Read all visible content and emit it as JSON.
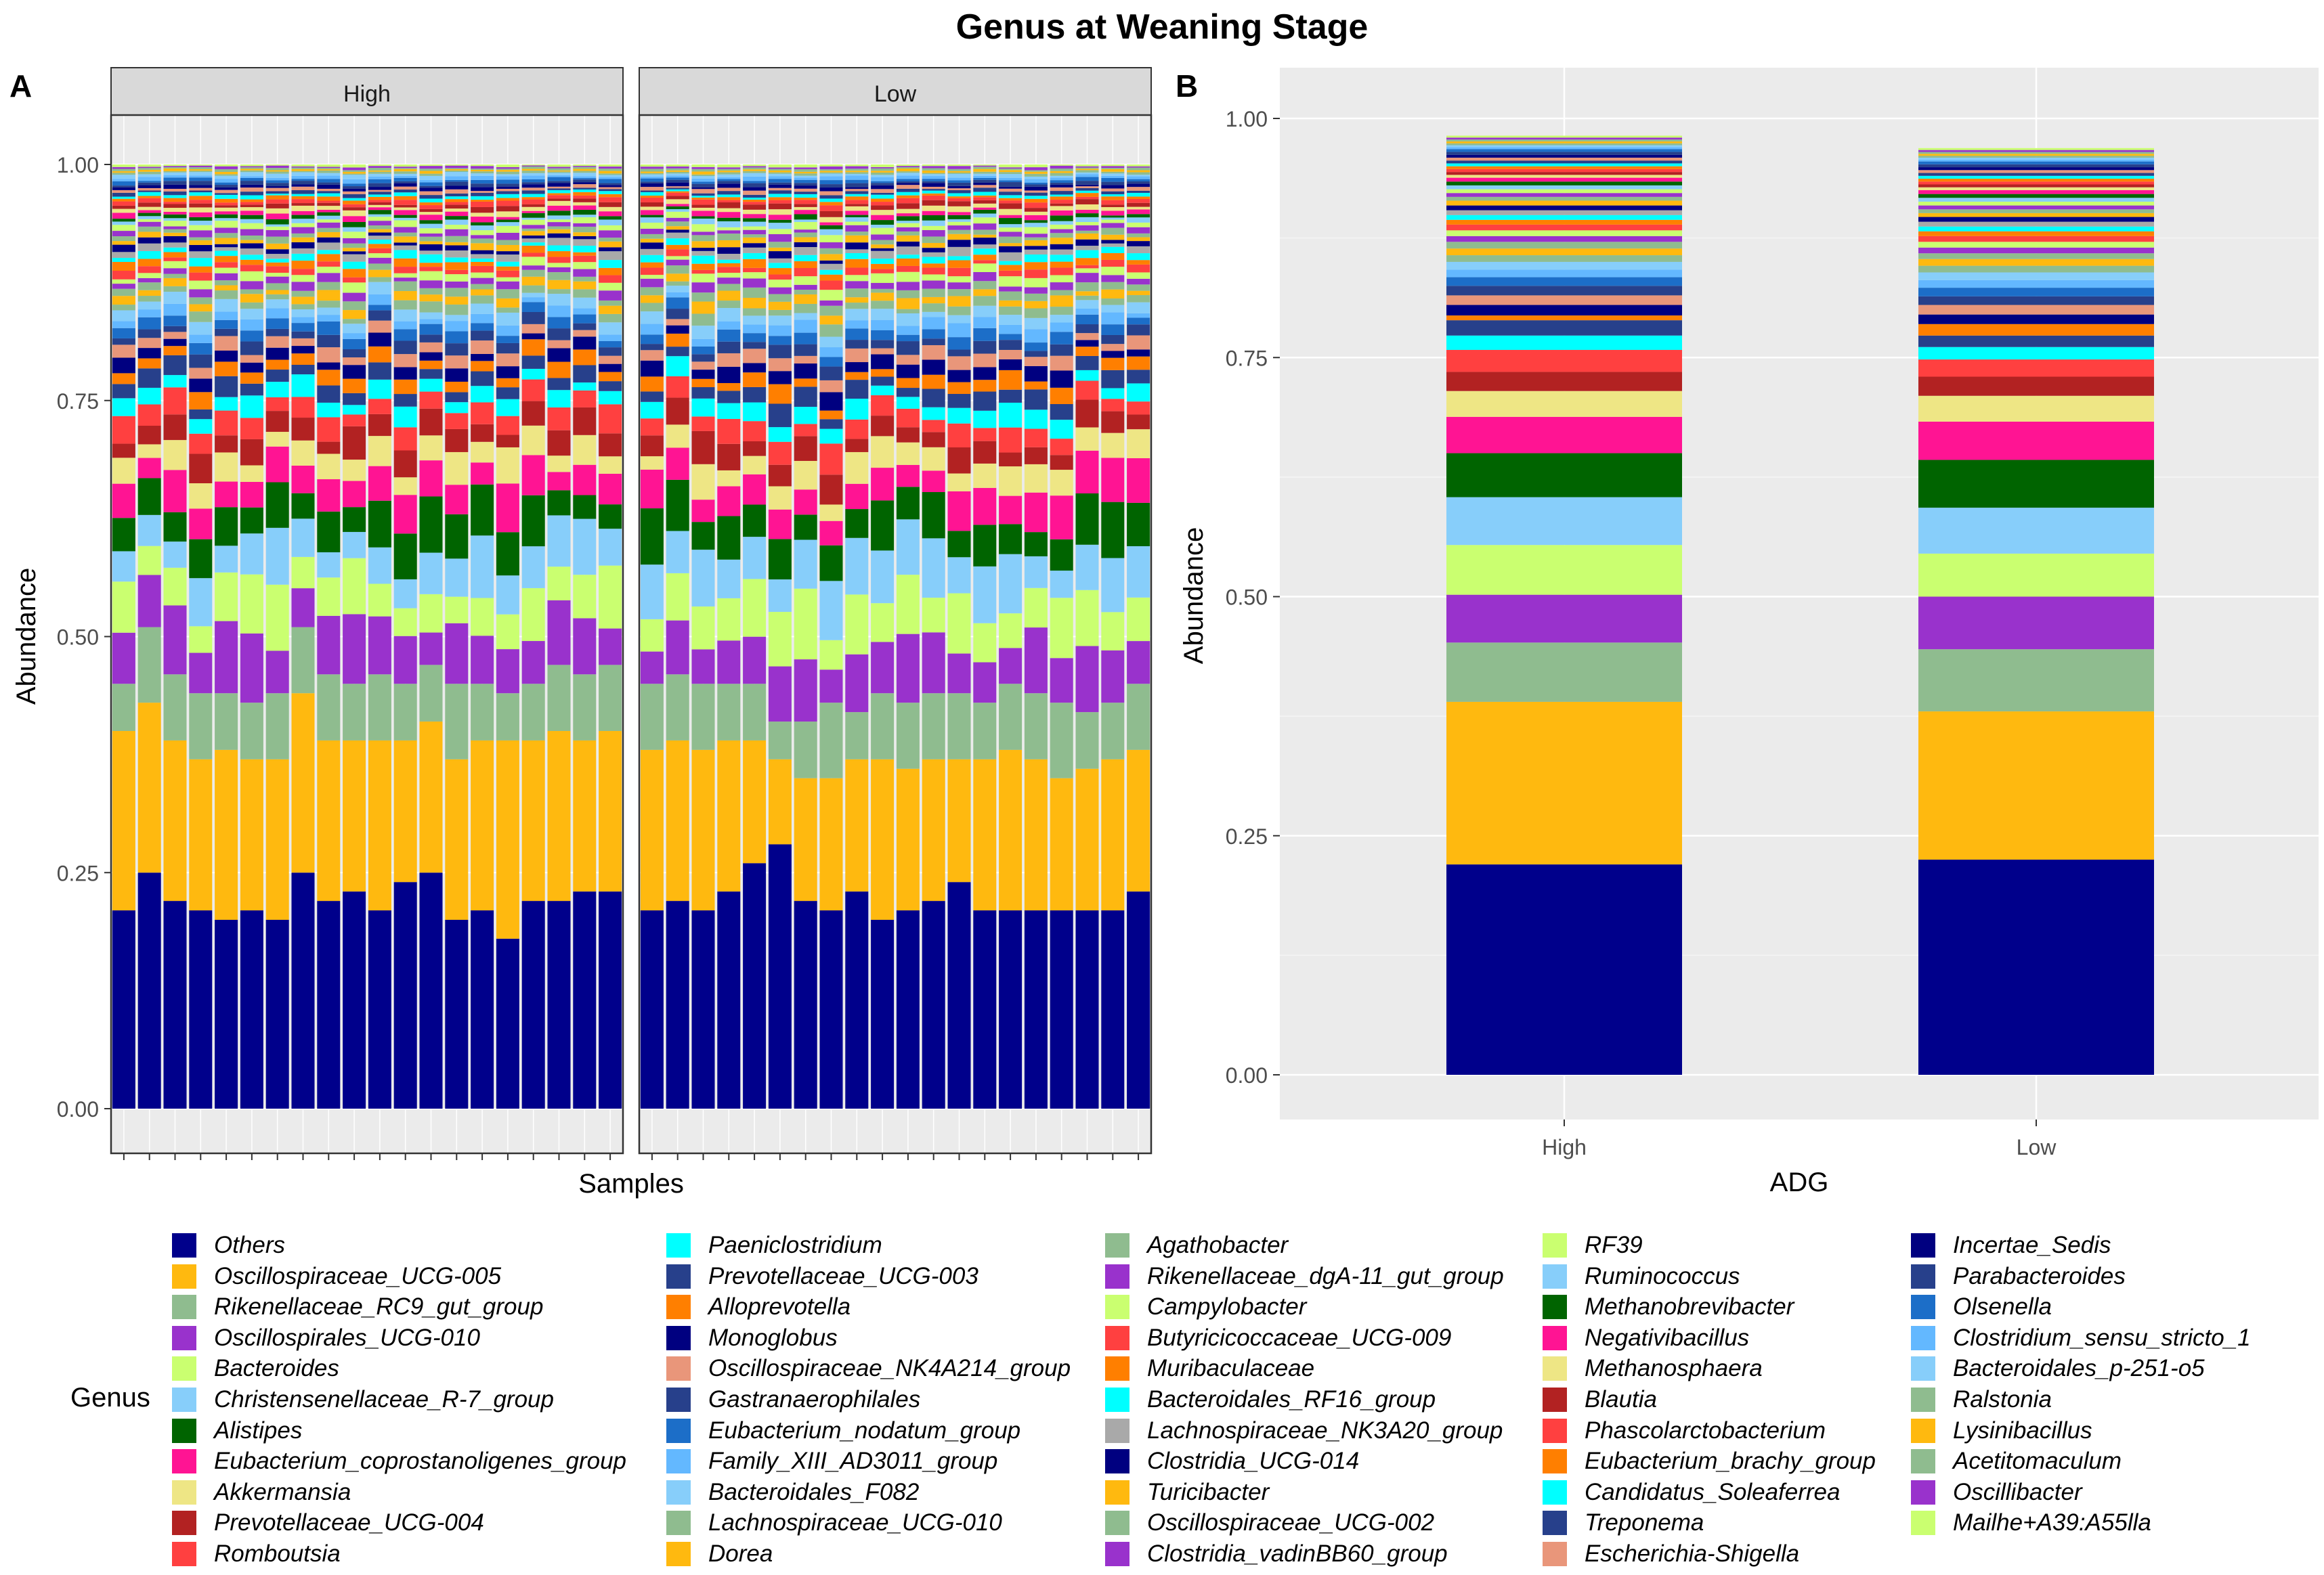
{
  "figure_title": "Genus at Weaning Stage",
  "panel_labels": [
    "A",
    "B"
  ],
  "legend_title": "Genus",
  "colors": {
    "panel_bg": "#ebebeb",
    "strip_bg": "#d9d9d9",
    "grid": "#ffffff"
  },
  "chart_data": [
    {
      "type": "bar",
      "stacked": true,
      "facets": [
        "High",
        "Low"
      ],
      "samples_per_facet": 20,
      "xlabel": "Samples",
      "ylabel": "Abundance",
      "ylim": [
        0,
        1
      ],
      "yticks": [
        "0.00",
        "0.25",
        "0.50",
        "0.75",
        "1.00"
      ],
      "first_layers_note_free": true,
      "layers": [
        {
          "name": "Others",
          "High": [
            0.21,
            0.25,
            0.22,
            0.21,
            0.2,
            0.21,
            0.2,
            0.25,
            0.22,
            0.23,
            0.21,
            0.24,
            0.25,
            0.2,
            0.21,
            0.18,
            0.22,
            0.22,
            0.23,
            0.23
          ],
          "Low": [
            0.21,
            0.22,
            0.21,
            0.23,
            0.26,
            0.28,
            0.22,
            0.21,
            0.23,
            0.2,
            0.21,
            0.22,
            0.24,
            0.21,
            0.21,
            0.21,
            0.21,
            0.21,
            0.21,
            0.23
          ]
        },
        {
          "name": "Oscillospiraceae_UCG-005",
          "High": [
            0.19,
            0.18,
            0.17,
            0.16,
            0.18,
            0.16,
            0.17,
            0.19,
            0.17,
            0.16,
            0.18,
            0.15,
            0.16,
            0.17,
            0.18,
            0.21,
            0.17,
            0.18,
            0.16,
            0.17
          ],
          "Low": [
            0.17,
            0.17,
            0.17,
            0.16,
            0.13,
            0.09,
            0.13,
            0.14,
            0.14,
            0.17,
            0.15,
            0.15,
            0.13,
            0.16,
            0.17,
            0.16,
            0.14,
            0.15,
            0.16,
            0.15
          ]
        },
        {
          "name": "Rikenellaceae_RC9_gut_group",
          "High": [
            0.05,
            0.08,
            0.07,
            0.07,
            0.06,
            0.06,
            0.07,
            0.07,
            0.07,
            0.06,
            0.07,
            0.06,
            0.06,
            0.08,
            0.06,
            0.05,
            0.06,
            0.07,
            0.07,
            0.07
          ],
          "Low": [
            0.07,
            0.07,
            0.07,
            0.06,
            0.06,
            0.04,
            0.06,
            0.08,
            0.05,
            0.07,
            0.07,
            0.07,
            0.07,
            0.06,
            0.07,
            0.07,
            0.08,
            0.06,
            0.06,
            0.07
          ]
        }
      ],
      "genera_order": [
        "Others",
        "Oscillospiraceae_UCG-005",
        "Rikenellaceae_RC9_gut_group",
        "Oscillospirales_UCG-010",
        "Bacteroides",
        "Christensenellaceae_R-7_group",
        "Alistipes",
        "Eubacterium_coprostanoligenes_group",
        "Akkermansia",
        "Prevotellaceae_UCG-004",
        "Romboutsia",
        "Paeniclostridium",
        "Prevotellaceae_UCG-003",
        "Alloprevotella",
        "Monoglobus",
        "Oscillospiraceae_NK4A214_group",
        "Gastranaerophilales",
        "Eubacterium_nodatum_group",
        "Family_XIII_AD3011_group",
        "Bacteroidales_F082",
        "Lachnospiraceae_UCG-010",
        "Dorea",
        "Agathobacter",
        "Rikenellaceae_dgA-11_gut_group",
        "Campylobacter",
        "Butyricicoccaceae_UCG-009",
        "Muribaculaceae",
        "Bacteroidales_RF16_group",
        "Lachnospiraceae_NK3A20_group",
        "Clostridia_UCG-014",
        "Turicibacter",
        "Oscillospiraceae_UCG-002",
        "Clostridia_vadinBB60_group",
        "RF39",
        "Ruminococcus",
        "Methanobrevibacter",
        "Negativibacillus",
        "Methanosphaera",
        "Blautia",
        "Phascolarctobacterium",
        "Eubacterium_brachy_group",
        "Candidatus_Soleaferrea",
        "Treponema",
        "Escherichia-Shigella",
        "Incertae_Sedis",
        "Parabacteroides",
        "Olsenella",
        "Clostridium_sensu_stricto_1",
        "Bacteroidales_p-251-o5",
        "Ralstonia",
        "Lysinibacillus",
        "Acetitomaculum",
        "Oscillibacter",
        "Mailhe+A39:A55lla"
      ]
    },
    {
      "type": "bar",
      "stacked": true,
      "categories": [
        "High",
        "Low"
      ],
      "xlabel": "ADG",
      "ylabel": "Abundance",
      "ylim": [
        0,
        1
      ],
      "yticks": [
        "0.00",
        "0.25",
        "0.50",
        "0.75",
        "1.00"
      ],
      "series": [
        {
          "name": "Others",
          "values": [
            0.22,
            0.225
          ]
        },
        {
          "name": "Oscillospiraceae_UCG-005",
          "values": [
            0.17,
            0.155
          ]
        },
        {
          "name": "Rikenellaceae_RC9_gut_group",
          "values": [
            0.062,
            0.065
          ]
        },
        {
          "name": "Oscillospirales_UCG-010",
          "values": [
            0.05,
            0.055
          ]
        },
        {
          "name": "Bacteroides",
          "values": [
            0.052,
            0.045
          ]
        },
        {
          "name": "Christensenellaceae_R-7_group",
          "values": [
            0.05,
            0.048
          ]
        },
        {
          "name": "Alistipes",
          "values": [
            0.046,
            0.05
          ]
        },
        {
          "name": "Eubacterium_coprostanoligenes_group",
          "values": [
            0.038,
            0.04
          ]
        },
        {
          "name": "Akkermansia",
          "values": [
            0.027,
            0.027
          ]
        },
        {
          "name": "Prevotellaceae_UCG-004",
          "values": [
            0.02,
            0.02
          ]
        },
        {
          "name": "Romboutsia",
          "values": [
            0.023,
            0.018
          ]
        },
        {
          "name": "Paeniclostridium",
          "values": [
            0.015,
            0.013
          ]
        },
        {
          "name": "Prevotellaceae_UCG-003",
          "values": [
            0.016,
            0.012
          ]
        },
        {
          "name": "Alloprevotella",
          "values": [
            0.005,
            0.012
          ]
        },
        {
          "name": "Monoglobus",
          "values": [
            0.011,
            0.01
          ]
        },
        {
          "name": "Oscillospiraceae_NK4A214_group",
          "values": [
            0.01,
            0.01
          ]
        },
        {
          "name": "Gastranaerophilales",
          "values": [
            0.01,
            0.009
          ]
        },
        {
          "name": "Eubacterium_nodatum_group",
          "values": [
            0.009,
            0.009
          ]
        },
        {
          "name": "Family_XIII_AD3011_group",
          "values": [
            0.008,
            0.008
          ]
        },
        {
          "name": "Bacteroidales_F082",
          "values": [
            0.008,
            0.008
          ]
        },
        {
          "name": "Lachnospiraceae_UCG-010",
          "values": [
            0.007,
            0.007
          ]
        },
        {
          "name": "Dorea",
          "values": [
            0.007,
            0.007
          ]
        },
        {
          "name": "Agathobacter",
          "values": [
            0.007,
            0.006
          ]
        },
        {
          "name": "Rikenellaceae_dgA-11_gut_group",
          "values": [
            0.006,
            0.006
          ]
        },
        {
          "name": "Campylobacter",
          "values": [
            0.006,
            0.006
          ]
        },
        {
          "name": "Butyricicoccaceae_UCG-009",
          "values": [
            0.006,
            0.006
          ]
        },
        {
          "name": "Muribaculaceae",
          "values": [
            0.005,
            0.005
          ]
        },
        {
          "name": "Bacteroidales_RF16_group",
          "values": [
            0.005,
            0.005
          ]
        },
        {
          "name": "Lachnospiraceae_NK3A20_group",
          "values": [
            0.005,
            0.005
          ]
        },
        {
          "name": "Clostridia_UCG-014",
          "values": [
            0.005,
            0.005
          ]
        },
        {
          "name": "Turicibacter",
          "values": [
            0.005,
            0.004
          ]
        },
        {
          "name": "Oscillospiraceae_UCG-002",
          "values": [
            0.004,
            0.004
          ]
        },
        {
          "name": "Clostridia_vadinBB60_group",
          "values": [
            0.004,
            0.004
          ]
        },
        {
          "name": "RF39",
          "values": [
            0.004,
            0.004
          ]
        },
        {
          "name": "Ruminococcus",
          "values": [
            0.004,
            0.004
          ]
        },
        {
          "name": "Methanobrevibacter",
          "values": [
            0.004,
            0.004
          ]
        },
        {
          "name": "Negativibacillus",
          "values": [
            0.004,
            0.004
          ]
        },
        {
          "name": "Methanosphaera",
          "values": [
            0.003,
            0.003
          ]
        },
        {
          "name": "Blautia",
          "values": [
            0.003,
            0.003
          ]
        },
        {
          "name": "Phascolarctobacterium",
          "values": [
            0.003,
            0.003
          ]
        },
        {
          "name": "Eubacterium_brachy_group",
          "values": [
            0.003,
            0.003
          ]
        },
        {
          "name": "Candidatus_Soleaferrea",
          "values": [
            0.003,
            0.003
          ]
        },
        {
          "name": "Treponema",
          "values": [
            0.003,
            0.003
          ]
        },
        {
          "name": "Escherichia-Shigella",
          "values": [
            0.003,
            0.003
          ]
        },
        {
          "name": "Incertae_Sedis",
          "values": [
            0.003,
            0.003
          ]
        },
        {
          "name": "Parabacteroides",
          "values": [
            0.003,
            0.003
          ]
        },
        {
          "name": "Olsenella",
          "values": [
            0.003,
            0.003
          ]
        },
        {
          "name": "Clostridium_sensu_stricto_1",
          "values": [
            0.002,
            0.002
          ]
        },
        {
          "name": "Bacteroidales_p-251-o5",
          "values": [
            0.002,
            0.002
          ]
        },
        {
          "name": "Ralstonia",
          "values": [
            0.002,
            0.002
          ]
        },
        {
          "name": "Lysinibacillus",
          "values": [
            0.002,
            0.002
          ]
        },
        {
          "name": "Acetitomaculum",
          "values": [
            0.002,
            0.002
          ]
        },
        {
          "name": "Oscillibacter",
          "values": [
            0.002,
            0.002
          ]
        },
        {
          "name": "Mailhe+A39:A55lla",
          "values": [
            0.002,
            0.002
          ]
        }
      ]
    }
  ],
  "legend_colors": [
    "#00008b",
    "#ffb90f",
    "#8fbc8f",
    "#9932cc",
    "#caff70",
    "#87cefa",
    "#006400",
    "#ff1493",
    "#eee685",
    "#b22222",
    "#ff4040",
    "#00ffff",
    "#27408b",
    "#ff7f00",
    "#000080",
    "#e9967a",
    "#27408b",
    "#1c6ec8",
    "#63b8ff",
    "#87cefa",
    "#8fbc8f",
    "#ffb90f",
    "#8fbc8f",
    "#9932cc",
    "#caff70",
    "#ff4040",
    "#ff7f00",
    "#00ffff",
    "#a9a9a9",
    "#000080",
    "#ffb90f",
    "#8fbc8f",
    "#9932cc",
    "#caff70",
    "#87cefa",
    "#006400",
    "#ff1493",
    "#eee685",
    "#b22222",
    "#ff4040",
    "#ff7f00",
    "#00ffff",
    "#27408b",
    "#e9967a",
    "#000080",
    "#27408b",
    "#1c6ec8",
    "#63b8ff",
    "#87cefa",
    "#8fbc8f",
    "#ffb90f",
    "#8fbc8f",
    "#9932cc",
    "#caff70"
  ]
}
